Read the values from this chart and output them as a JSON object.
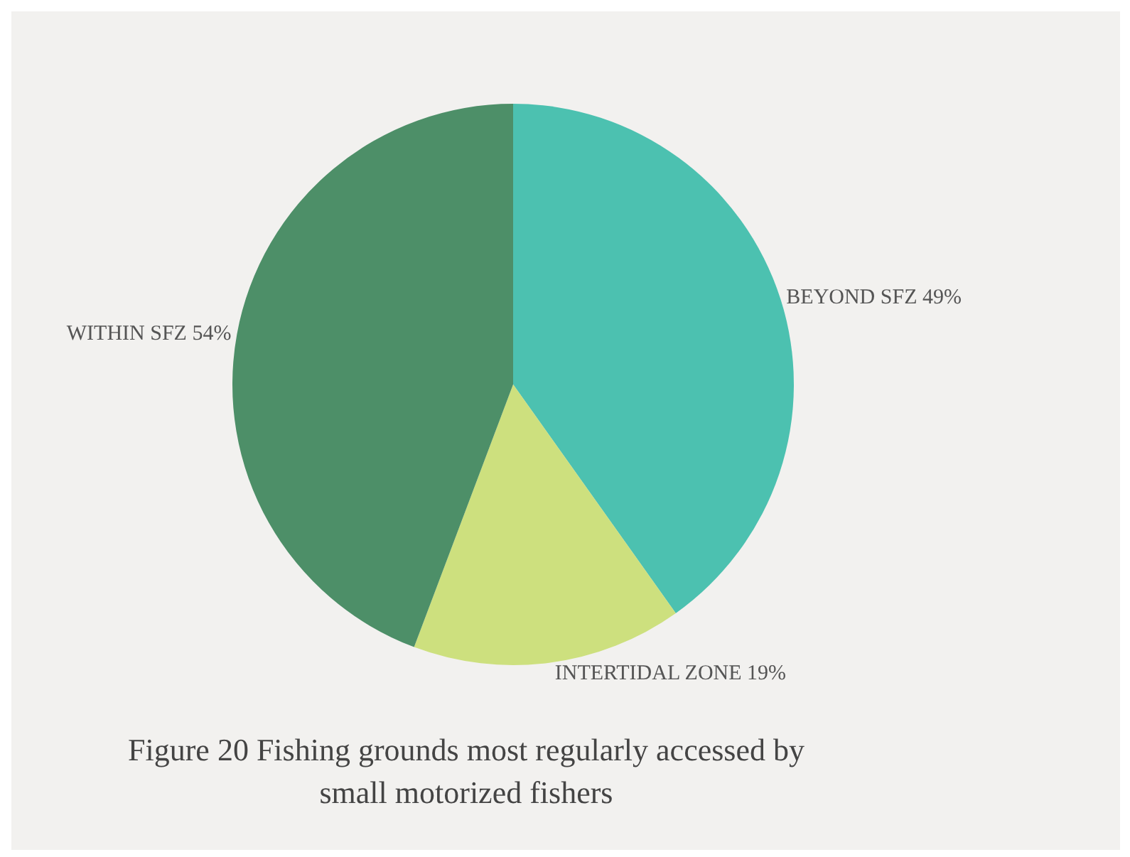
{
  "chart_data": {
    "type": "pie",
    "title": "Figure 20 Fishing grounds most regularly accessed by small motorized fishers",
    "categories": [
      "BEYOND SFZ",
      "INTERTIDAL ZONE",
      "WITHIN SFZ"
    ],
    "values": [
      49,
      19,
      54
    ],
    "value_labels": [
      "49%",
      "19%",
      "54%"
    ],
    "colors": [
      "#4cc1b0",
      "#cde07e",
      "#4d8f68"
    ],
    "legend": false
  }
}
